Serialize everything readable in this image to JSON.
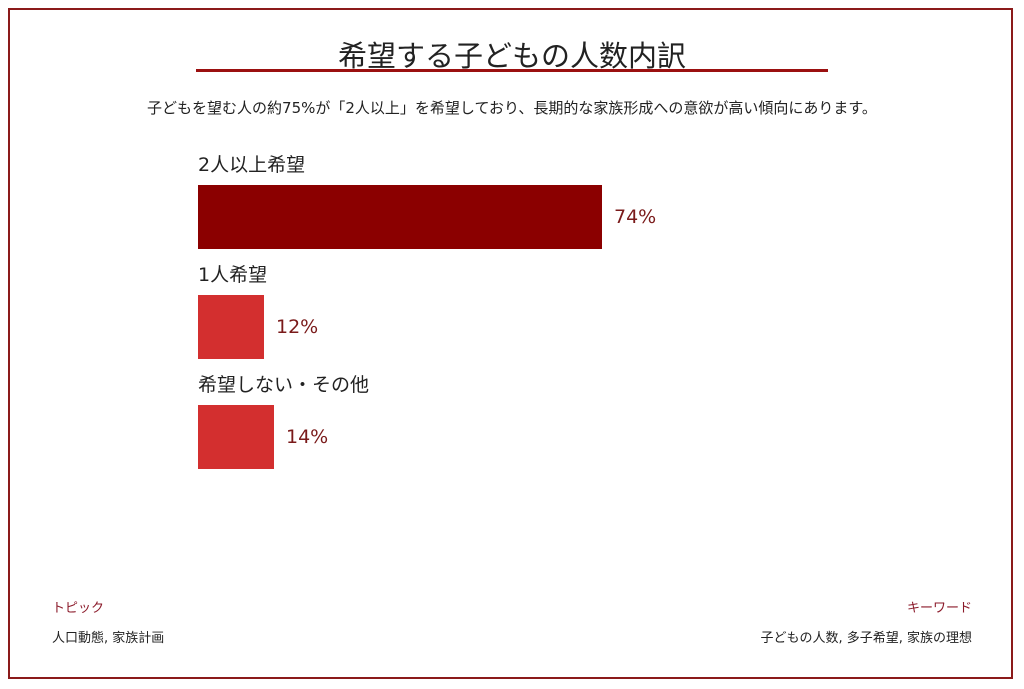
{
  "header": {
    "title": "希望する子どもの人数内訳",
    "subtitle": "子どもを望む人の約75%が「2人以上」を希望しており、長期的な家族形成への意欲が高い傾向にあります。"
  },
  "chart_data": {
    "type": "bar",
    "orientation": "horizontal",
    "title": "希望する子どもの人数内訳",
    "subtitle": "子どもを望む人の約75%が「2人以上」を希望しており、長期的な家族形成への意欲が高い傾向にあります。",
    "categories": [
      "2人以上希望",
      "1人希望",
      "希望しない・その他"
    ],
    "values": [
      74,
      12,
      14
    ],
    "value_labels": [
      "74%",
      "12%",
      "14%"
    ],
    "colors": [
      "#8b0000",
      "#d32f2f",
      "#d32f2f"
    ],
    "unit": "%",
    "xlabel": "",
    "ylabel": "",
    "xlim": [
      0,
      100
    ],
    "grid": false,
    "legend": null
  },
  "bars": [
    {
      "label": "2人以上希望",
      "value": 74,
      "value_label": "74%",
      "color": "#8b0000"
    },
    {
      "label": "1人希望",
      "value": 12,
      "value_label": "12%",
      "color": "#d32f2f"
    },
    {
      "label": "希望しない・その他",
      "value": 14,
      "value_label": "14%",
      "color": "#d32f2f"
    }
  ],
  "footer": {
    "topic_heading": "トピック",
    "topic_text": "人口動態, 家族計画",
    "keyword_heading": "キーワード",
    "keyword_text": "子どもの人数, 多子希望, 家族の理想"
  },
  "colors": {
    "border": "#8b1a1a",
    "title_rule": "#9b1010",
    "accent_text": "#8b1a2a",
    "value_text": "#7a1a1a"
  }
}
